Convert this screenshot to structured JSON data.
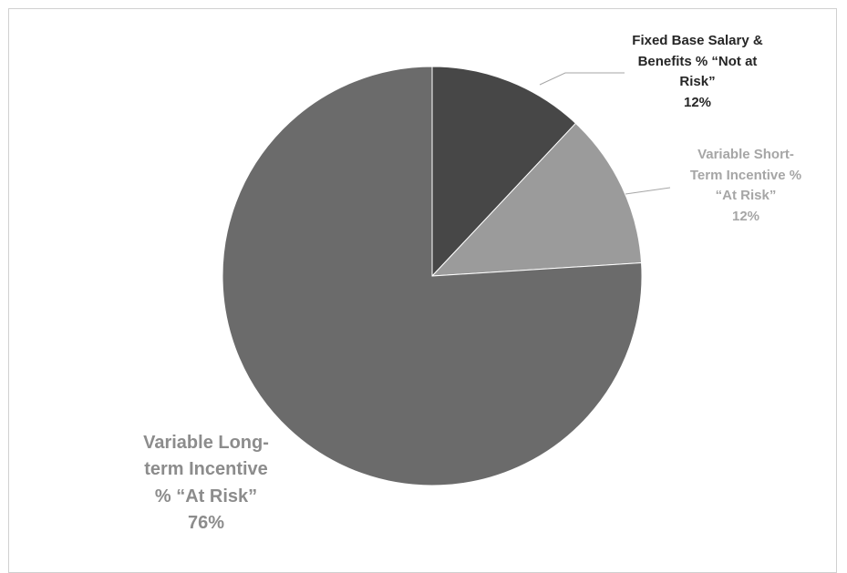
{
  "chart_data": {
    "type": "pie",
    "title": "",
    "slices": [
      {
        "label": "Fixed Base Salary & Benefits % “Not at Risk”",
        "label_lines": [
          "Fixed Base Salary &",
          "Benefits % “Not at",
          "Risk”"
        ],
        "value": 12,
        "value_label": "12%",
        "color": "#474747",
        "label_color": "#262626"
      },
      {
        "label": "Variable Short-Term Incentive % “At Risk”",
        "label_lines": [
          "Variable Short-",
          "Term Incentive %",
          "“At Risk”"
        ],
        "value": 12,
        "value_label": "12%",
        "color": "#9b9b9b",
        "label_color": "#a6a6a6"
      },
      {
        "label": "Variable Long-term Incentive % “At Risk”",
        "label_lines": [
          "Variable Long-",
          "term Incentive",
          "% “At Risk”"
        ],
        "value": 76,
        "value_label": "76%",
        "color": "#6b6b6b",
        "label_color": "#8c8c8c"
      }
    ],
    "start_angle_deg": 0,
    "direction": "clockwise",
    "legend": "none"
  }
}
